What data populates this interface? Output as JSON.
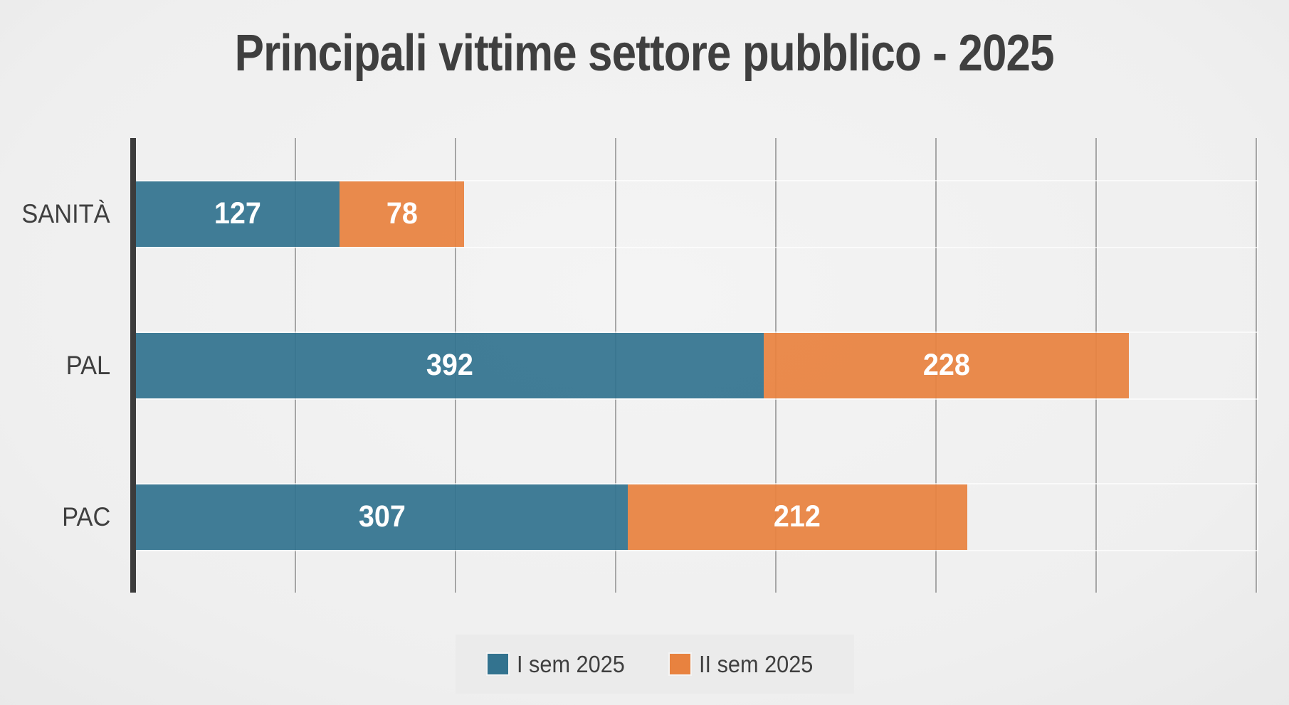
{
  "chart_data": {
    "type": "bar",
    "orientation": "horizontal",
    "stacked": true,
    "title": "Principali vittime settore pubblico - 2025",
    "categories": [
      "SANITÀ",
      "PAL",
      "PAC"
    ],
    "series": [
      {
        "name": "I sem 2025",
        "color": "#33738F",
        "values": [
          127,
          392,
          307
        ]
      },
      {
        "name": "II sem 2025",
        "color": "#E8823F",
        "values": [
          78,
          228,
          212
        ]
      }
    ],
    "xlim": [
      0,
      700
    ],
    "gridline_interval": 100,
    "grid": true,
    "xlabel": "",
    "ylabel": "",
    "legend_position": "bottom",
    "value_labels": "inside-center",
    "colors": {
      "title_text": "#3F3F3F",
      "category_text": "#3F3F3F",
      "value_text": "#FFFFFF",
      "axis_line": "#3C3C3C",
      "gridline": "#A6A6A6",
      "legend_background": "#EBEBEB",
      "series_1": "#33738F",
      "series_2": "#E8823F"
    }
  }
}
